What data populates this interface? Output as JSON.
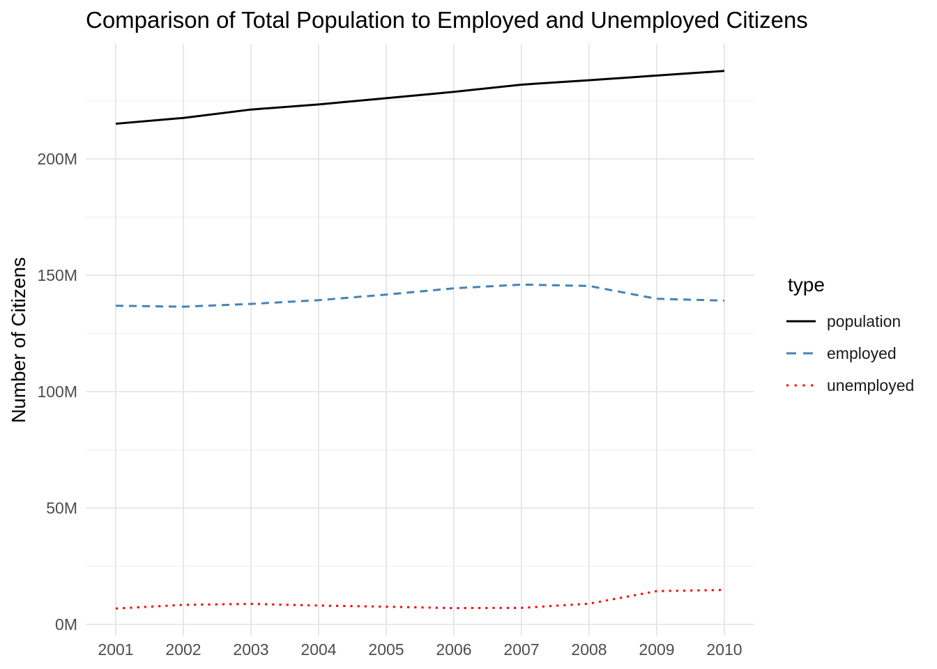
{
  "title": "Comparison of Total Population to Employed and Unemployed Citizens",
  "y_axis": {
    "label": "Number of Citizens",
    "tick_labels": [
      "0M",
      "50M",
      "100M",
      "150M",
      "200M"
    ],
    "tick_values": [
      0,
      50,
      100,
      150,
      200
    ],
    "minor_tick_values": [
      25,
      75,
      125,
      175,
      225
    ]
  },
  "x_axis": {
    "tick_labels": [
      "2001",
      "2002",
      "2003",
      "2004",
      "2005",
      "2006",
      "2007",
      "2008",
      "2009",
      "2010"
    ],
    "tick_values": [
      2001,
      2002,
      2003,
      2004,
      2005,
      2006,
      2007,
      2008,
      2009,
      2010
    ]
  },
  "legend": {
    "title": "type",
    "position": "right",
    "entries": [
      {
        "label": "population",
        "style": "solid",
        "color": "#000000"
      },
      {
        "label": "employed",
        "style": "dashed",
        "color": "#4682B4"
      },
      {
        "label": "unemployed",
        "style": "dotted",
        "color": "#FF0000"
      }
    ]
  },
  "chart_data": {
    "type": "line",
    "title": "Comparison of Total Population to Employed and Unemployed Citizens",
    "xlabel": "",
    "ylabel": "Number of Citizens",
    "x": [
      2001,
      2002,
      2003,
      2004,
      2005,
      2006,
      2007,
      2008,
      2009,
      2010
    ],
    "y_unit": "millions of citizens",
    "ylim": [
      0,
      249
    ],
    "xlim": [
      2001,
      2010
    ],
    "grid": true,
    "legend_position": "right",
    "series": [
      {
        "name": "population",
        "style": "solid",
        "color": "#000000",
        "values": [
          215.1,
          217.6,
          221.2,
          223.4,
          226.1,
          228.8,
          231.9,
          233.8,
          235.8,
          237.8
        ]
      },
      {
        "name": "employed",
        "style": "dashed",
        "color": "#4682B4",
        "values": [
          136.9,
          136.5,
          137.7,
          139.3,
          141.7,
          144.4,
          146.0,
          145.4,
          139.9,
          139.1
        ]
      },
      {
        "name": "unemployed",
        "style": "dotted",
        "color": "#FF0000",
        "values": [
          6.8,
          8.4,
          8.8,
          8.1,
          7.6,
          7.0,
          7.1,
          8.9,
          14.3,
          14.8
        ]
      }
    ]
  }
}
